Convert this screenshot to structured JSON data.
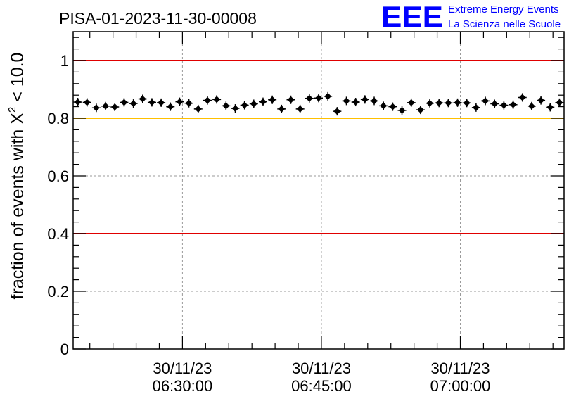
{
  "header": {
    "run_title": "PISA-01-2023-11-30-00008",
    "logo_mark": "EEE",
    "logo_line1": "Extreme Energy Events",
    "logo_line2": "La Scienza nelle Scuole"
  },
  "colors": {
    "background": "#ffffff",
    "text": "#000000",
    "logo_blue": "#0000ff",
    "red_line": "#e00000",
    "yellow_line": "#ffc000",
    "grid": "#9a9a9a",
    "marker": "#000000"
  },
  "chart_data": {
    "type": "scatter",
    "title": "PISA-01-2023-11-30-00008",
    "ylabel": "fraction of events with χ² < 10.0",
    "ylabel_parts": {
      "pre": "fraction of events with X",
      "sup": "2",
      "post": " < 10.0"
    },
    "xlabel": "",
    "ylim": [
      0,
      1.1
    ],
    "xlim_minutes": [
      18.2,
      71.2
    ],
    "x_axis_type": "time",
    "y_ticks": [
      {
        "value": 0,
        "label": "0"
      },
      {
        "value": 0.2,
        "label": "0.2"
      },
      {
        "value": 0.4,
        "label": "0.4"
      },
      {
        "value": 0.6,
        "label": "0.6"
      },
      {
        "value": 0.8,
        "label": "0.8"
      },
      {
        "value": 1.0,
        "label": "1"
      }
    ],
    "x_ticks": [
      {
        "minute": 30,
        "date": "30/11/23",
        "time": "06:30:00"
      },
      {
        "minute": 45,
        "date": "30/11/23",
        "time": "06:45:00"
      },
      {
        "minute": 60,
        "date": "30/11/23",
        "time": "07:00:00"
      }
    ],
    "grid": "dotted",
    "reference_lines": [
      {
        "y": 1.0,
        "color": "#e00000"
      },
      {
        "y": 0.8,
        "color": "#ffc000"
      },
      {
        "y": 0.4,
        "color": "#e00000"
      }
    ],
    "series": [
      {
        "x_minutes": [
          18.7,
          19.7,
          20.7,
          21.7,
          22.7,
          23.7,
          24.7,
          25.7,
          26.7,
          27.7,
          28.7,
          29.7,
          30.7,
          31.7,
          32.7,
          33.7,
          34.7,
          35.7,
          36.7,
          37.7,
          38.7,
          39.7,
          40.7,
          41.7,
          42.7,
          43.7,
          44.7,
          45.7,
          46.7,
          47.7,
          48.7,
          49.7,
          50.7,
          51.7,
          52.7,
          53.7,
          54.7,
          55.7,
          56.7,
          57.7,
          58.7,
          59.7,
          60.7,
          61.7,
          62.7,
          63.7,
          64.7,
          65.7,
          66.7,
          67.7,
          68.7,
          69.7,
          70.7
        ],
        "y": [
          0.856,
          0.855,
          0.836,
          0.842,
          0.839,
          0.855,
          0.851,
          0.867,
          0.855,
          0.854,
          0.84,
          0.857,
          0.852,
          0.832,
          0.862,
          0.865,
          0.843,
          0.834,
          0.845,
          0.85,
          0.857,
          0.864,
          0.832,
          0.864,
          0.832,
          0.869,
          0.87,
          0.876,
          0.824,
          0.86,
          0.856,
          0.865,
          0.86,
          0.843,
          0.84,
          0.827,
          0.854,
          0.829,
          0.852,
          0.853,
          0.853,
          0.854,
          0.853,
          0.837,
          0.86,
          0.85,
          0.845,
          0.847,
          0.872,
          0.842,
          0.862,
          0.838,
          0.854
        ]
      }
    ]
  }
}
